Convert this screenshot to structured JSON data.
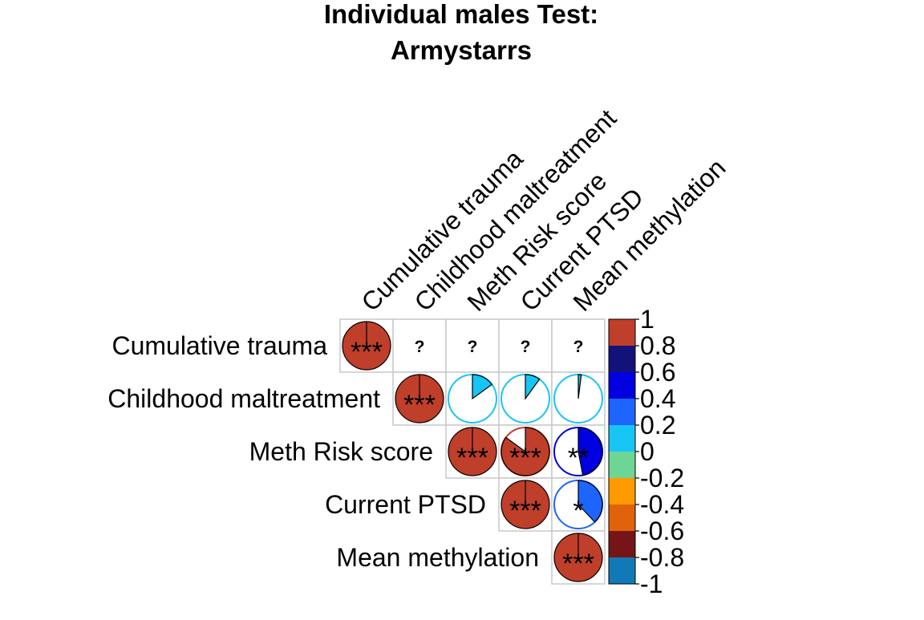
{
  "chart_data": {
    "type": "heatmap",
    "subtype": "correlation-pie-matrix-upper-triangle",
    "title_lines": [
      "Individual males Test:",
      "Armystarrs"
    ],
    "variables": [
      "Cumulative trauma",
      "Childhood maltreatment",
      "Meth Risk score",
      "Current PTSD",
      "Mean methylation"
    ],
    "matrix": [
      [
        1,
        null,
        null,
        null,
        null
      ],
      [
        null,
        1,
        0.15,
        0.1,
        0.02
      ],
      [
        null,
        null,
        1,
        0.85,
        0.47
      ],
      [
        null,
        null,
        null,
        1,
        0.38
      ],
      [
        null,
        null,
        null,
        null,
        1
      ]
    ],
    "significance": [
      [
        "***",
        "?",
        "?",
        "?",
        "?"
      ],
      [
        "",
        "***",
        "",
        "",
        ""
      ],
      [
        "",
        "",
        "***",
        "***",
        "**"
      ],
      [
        "",
        "",
        "",
        "***",
        "*"
      ],
      [
        "",
        "",
        "",
        "",
        "***"
      ]
    ],
    "colorbar": {
      "ticks": [
        "1",
        "0.8",
        "0.6",
        "0.4",
        "0.2",
        "0",
        "-0.2",
        "-0.4",
        "-0.6",
        "-0.8",
        "-1"
      ],
      "bins": [
        {
          "range": [
            0.8,
            1.0
          ],
          "color": "#BF3F2B"
        },
        {
          "range": [
            0.6,
            0.8
          ],
          "color": "#12127A"
        },
        {
          "range": [
            0.4,
            0.6
          ],
          "color": "#0000E0"
        },
        {
          "range": [
            0.2,
            0.4
          ],
          "color": "#1E64FF"
        },
        {
          "range": [
            0.0,
            0.2
          ],
          "color": "#17C5F5"
        },
        {
          "range": [
            -0.2,
            0.0
          ],
          "color": "#6DD694"
        },
        {
          "range": [
            -0.4,
            -0.2
          ],
          "color": "#FF9B00"
        },
        {
          "range": [
            -0.6,
            -0.4
          ],
          "color": "#E0620A"
        },
        {
          "range": [
            -0.8,
            -0.6
          ],
          "color": "#751517"
        },
        {
          "range": [
            -1.0,
            -0.8
          ],
          "color": "#1279B8"
        }
      ]
    }
  }
}
